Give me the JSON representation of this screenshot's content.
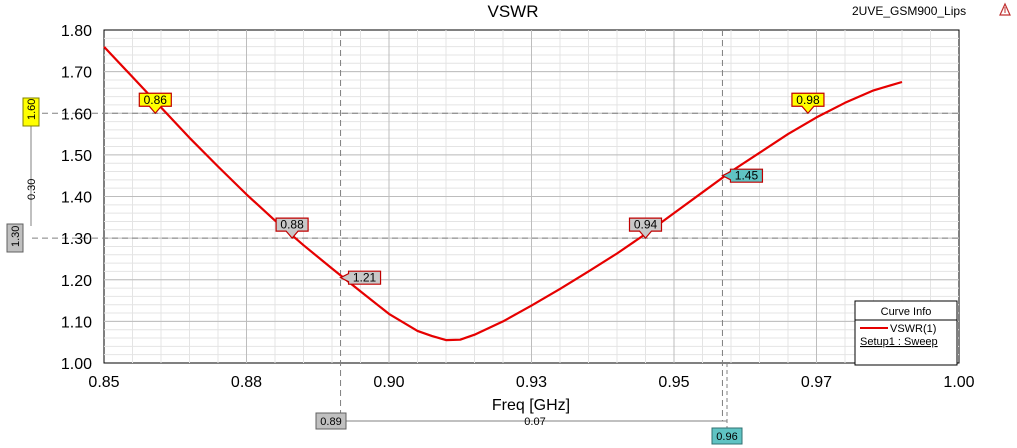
{
  "design_name": "2UVE_GSM900_Lips",
  "chart_data": {
    "type": "line",
    "title": "VSWR",
    "xlabel": "Freq [GHz]",
    "ylabel": "",
    "xlim": [
      0.85,
      1.0
    ],
    "ylim": [
      1.0,
      1.8
    ],
    "x_tick_labels": [
      "0.85",
      "0.88",
      "0.90",
      "0.93",
      "0.95",
      "0.97",
      "1.00"
    ],
    "y_tick_labels": [
      "1.00",
      "1.10",
      "1.20",
      "1.30",
      "1.40",
      "1.50",
      "1.60",
      "1.70",
      "1.80"
    ],
    "grid": true,
    "series": [
      {
        "name": "VSWR(1)",
        "color": "#e60000",
        "x": [
          0.85,
          0.855,
          0.86,
          0.865,
          0.87,
          0.875,
          0.88,
          0.885,
          0.89,
          0.895,
          0.9,
          0.905,
          0.9075,
          0.91,
          0.9125,
          0.915,
          0.92,
          0.925,
          0.93,
          0.935,
          0.94,
          0.945,
          0.95,
          0.955,
          0.96,
          0.965,
          0.97,
          0.975,
          0.98,
          0.985,
          0.99
        ],
        "y": [
          1.76,
          1.687,
          1.614,
          1.541,
          1.472,
          1.405,
          1.342,
          1.283,
          1.227,
          1.172,
          1.118,
          1.077,
          1.065,
          1.055,
          1.056,
          1.068,
          1.1,
          1.138,
          1.178,
          1.22,
          1.263,
          1.31,
          1.36,
          1.41,
          1.46,
          1.505,
          1.55,
          1.59,
          1.625,
          1.655,
          1.675
        ]
      }
    ],
    "markers": [
      {
        "label": "0.86",
        "x": 0.859,
        "y": 1.6,
        "style": "yellow",
        "side": "above"
      },
      {
        "label": "0.88",
        "x": 0.883,
        "y": 1.3,
        "style": "grey",
        "side": "above"
      },
      {
        "label": "1.21",
        "x": 0.8915,
        "y": 1.205,
        "style": "grey",
        "side": "right"
      },
      {
        "label": "0.94",
        "x": 0.945,
        "y": 1.3,
        "style": "grey",
        "side": "above"
      },
      {
        "label": "1.45",
        "x": 0.9585,
        "y": 1.45,
        "style": "teal",
        "side": "right"
      },
      {
        "label": "0.98",
        "x": 0.9735,
        "y": 1.6,
        "style": "yellow",
        "side": "above"
      }
    ],
    "reference_lines": {
      "horizontal": [
        1.6,
        1.3
      ],
      "vertical": [
        0.8915,
        0.9585
      ]
    },
    "delta_markers": {
      "y_top": "1.60",
      "y_bottom": "1.30",
      "y_delta": "0.30",
      "x_left": "0.89",
      "x_right": "0.96",
      "x_delta": "0.07"
    },
    "legend": {
      "title": "Curve Info",
      "entry": "VSWR(1)",
      "subtitle": "Setup1 : Sweep",
      "placement": "bottom-right"
    }
  }
}
